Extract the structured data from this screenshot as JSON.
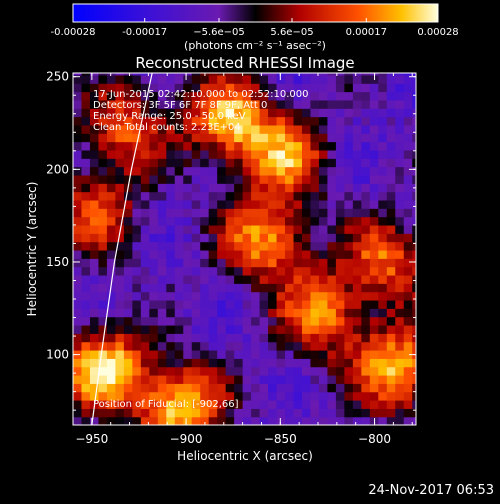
{
  "colorbar": {
    "tick_labels": [
      "-0.00028",
      "-0.00017",
      "−5.6e−05",
      "5.6e−05",
      "0.00017",
      "0.00028"
    ],
    "tick_values": [
      -0.00028,
      -0.00017,
      -5.6e-05,
      5.6e-05,
      0.00017,
      0.00028
    ],
    "range": [
      -0.00028,
      0.00028
    ],
    "units": "(photons cm⁻² s⁻¹ asec⁻²)"
  },
  "chart_data": {
    "type": "heatmap",
    "title": "Reconstructed RHESSI Image",
    "xlabel": "Heliocentric X (arcsec)",
    "ylabel": "Heliocentric Y (arcsec)",
    "xlim": [
      -960,
      -778
    ],
    "ylim": [
      62,
      252
    ],
    "x_ticks": [
      -950,
      -900,
      -850,
      -800
    ],
    "x_tick_labels": [
      "−950",
      "−900",
      "−850",
      "−800"
    ],
    "y_ticks": [
      100,
      150,
      200,
      250
    ],
    "y_tick_labels": [
      "100",
      "150",
      "200",
      "250"
    ],
    "annotations": [
      "17-Jun-2015 02:42:10.000 to 02:52:10.000",
      "Detectors: 3F 5F 6F 7F 8F 9F, Att 0",
      "Energy Range: 25.0 - 50.0 keV",
      "Clean    Total counts: 2.23E+04"
    ],
    "footnote": "Position of Fiducial: [-902,66]",
    "bright_regions": [
      {
        "x": -945,
        "y": 90,
        "intensity": 0.00026
      },
      {
        "x": -905,
        "y": 70,
        "intensity": 0.00024
      },
      {
        "x": -880,
        "y": 225,
        "intensity": 0.00022
      },
      {
        "x": -860,
        "y": 160,
        "intensity": 0.0002
      },
      {
        "x": -850,
        "y": 205,
        "intensity": 0.00017
      },
      {
        "x": -830,
        "y": 120,
        "intensity": 0.00018
      },
      {
        "x": -790,
        "y": 90,
        "intensity": 0.00024
      },
      {
        "x": -795,
        "y": 150,
        "intensity": 0.00015
      },
      {
        "x": -935,
        "y": 220,
        "intensity": 0.00014
      },
      {
        "x": -950,
        "y": 175,
        "intensity": 0.00012
      }
    ],
    "limb_curve": [
      [
        -950,
        62
      ],
      [
        -945,
        100
      ],
      [
        -938,
        150
      ],
      [
        -929,
        200
      ],
      [
        -918,
        252
      ]
    ]
  },
  "footer": {
    "date": "24-Nov-2017 06:53"
  }
}
